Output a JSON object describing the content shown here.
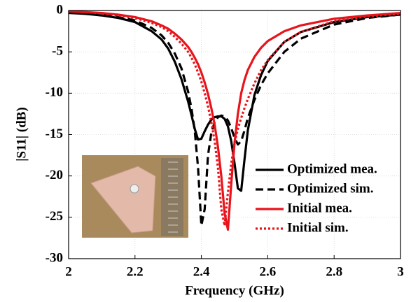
{
  "chart_data": {
    "type": "line",
    "xlabel": "Frequency (GHz)",
    "ylabel": "|S11| (dB)",
    "x": [
      2,
      2.05,
      2.1,
      2.15,
      2.2,
      2.25,
      2.28,
      2.3,
      2.32,
      2.34,
      2.36,
      2.37,
      2.38,
      2.39,
      2.4,
      2.41,
      2.42,
      2.43,
      2.44,
      2.45,
      2.46,
      2.47,
      2.48,
      2.49,
      2.5,
      2.51,
      2.52,
      2.53,
      2.54,
      2.56,
      2.58,
      2.6,
      2.65,
      2.7,
      2.8,
      2.9,
      3
    ],
    "series": [
      {
        "name": "Optimized mea.",
        "color": "#000000",
        "line_style": "solid",
        "values": [
          -0.3,
          -0.4,
          -0.6,
          -0.9,
          -1.4,
          -2.5,
          -3.5,
          -4.6,
          -6.2,
          -8.3,
          -11,
          -12.6,
          -14.3,
          -15.6,
          -15.5,
          -14.6,
          -13.8,
          -13.2,
          -12.9,
          -12.8,
          -12.8,
          -13.1,
          -14,
          -15.8,
          -18.5,
          -21.5,
          -21.8,
          -18,
          -14.5,
          -10.2,
          -7.8,
          -6.1,
          -3.8,
          -2.6,
          -1.4,
          -0.8,
          -0.5
        ]
      },
      {
        "name": "Optimized sim.",
        "color": "#000000",
        "line_style": "dashed",
        "values": [
          -0.2,
          -0.3,
          -0.5,
          -0.8,
          -1.2,
          -2.1,
          -3,
          -3.9,
          -5.2,
          -7,
          -9.8,
          -11.8,
          -14.5,
          -19,
          -26,
          -24,
          -17.5,
          -14.8,
          -13.5,
          -12.9,
          -12.7,
          -12.8,
          -13.3,
          -14.2,
          -15.4,
          -16.2,
          -15.8,
          -14.5,
          -13,
          -10.8,
          -9,
          -7.6,
          -5,
          -3.4,
          -1.7,
          -0.9,
          -0.5
        ]
      },
      {
        "name": "Initial mea.",
        "color": "#e8141b",
        "line_style": "solid",
        "values": [
          -0.1,
          -0.2,
          -0.3,
          -0.5,
          -0.8,
          -1.3,
          -1.8,
          -2.2,
          -2.8,
          -3.5,
          -4.4,
          -5,
          -5.7,
          -6.5,
          -7.5,
          -8.7,
          -10.1,
          -11.8,
          -13.8,
          -16.5,
          -20,
          -24.5,
          -26.5,
          -21,
          -16,
          -12.5,
          -10,
          -8.4,
          -7.2,
          -5.6,
          -4.5,
          -3.7,
          -2.5,
          -1.8,
          -1,
          -0.6,
          -0.3
        ]
      },
      {
        "name": "Initial sim.",
        "color": "#e8141b",
        "line_style": "dotted",
        "values": [
          -0.1,
          -0.2,
          -0.35,
          -0.6,
          -0.9,
          -1.5,
          -2,
          -2.5,
          -3.2,
          -4,
          -5,
          -5.7,
          -6.5,
          -7.5,
          -8.6,
          -10,
          -11.6,
          -13.5,
          -15.8,
          -19,
          -24,
          -26,
          -22,
          -18.5,
          -16,
          -14.3,
          -13,
          -11.8,
          -10.7,
          -8.8,
          -7.2,
          -6,
          -3.8,
          -2.6,
          -1.3,
          -0.7,
          -0.4
        ]
      }
    ],
    "xlim": [
      2,
      3
    ],
    "xticks": [
      2,
      2.2,
      2.4,
      2.6,
      2.8,
      3
    ],
    "ylim": [
      -30,
      0
    ],
    "yticks": [
      0,
      -5,
      -10,
      -15,
      -20,
      -25,
      -30
    ],
    "grid": true,
    "legend": "lower right"
  }
}
